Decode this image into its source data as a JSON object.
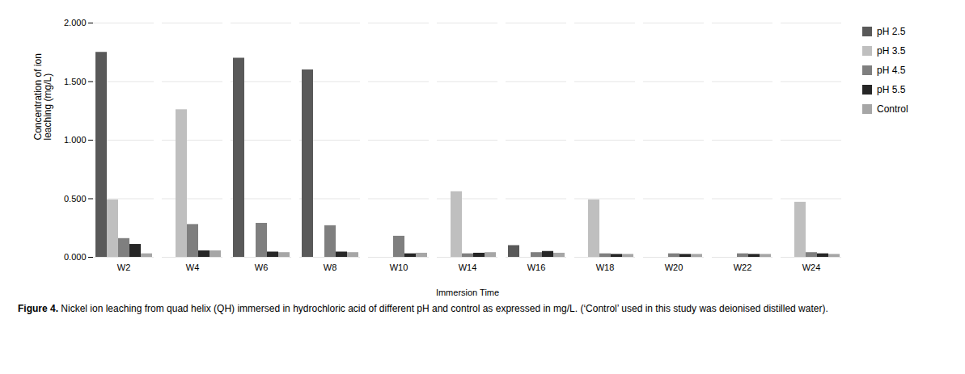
{
  "chart_data": {
    "type": "bar",
    "categories": [
      "W2",
      "W4",
      "W6",
      "W8",
      "W10",
      "W14",
      "W16",
      "W18",
      "W20",
      "W22",
      "W24"
    ],
    "series": [
      {
        "name": "pH 2.5",
        "color": "#595959",
        "values": [
          1.75,
          0.0,
          1.7,
          1.6,
          0.0,
          0.0,
          0.1,
          0.0,
          0.0,
          0.0,
          0.0
        ]
      },
      {
        "name": "pH 3.5",
        "color": "#bfbfbf",
        "values": [
          0.49,
          1.26,
          0.0,
          0.0,
          0.0,
          0.56,
          0.0,
          0.49,
          0.0,
          0.0,
          0.47
        ]
      },
      {
        "name": "pH 4.5",
        "color": "#7f7f7f",
        "values": [
          0.16,
          0.28,
          0.29,
          0.27,
          0.18,
          0.03,
          0.04,
          0.03,
          0.03,
          0.03,
          0.04
        ]
      },
      {
        "name": "pH 5.5",
        "color": "#262626",
        "values": [
          0.11,
          0.055,
          0.045,
          0.045,
          0.03,
          0.035,
          0.05,
          0.025,
          0.025,
          0.025,
          0.03
        ]
      },
      {
        "name": "Control",
        "color": "#a6a6a6",
        "values": [
          0.03,
          0.055,
          0.04,
          0.04,
          0.035,
          0.04,
          0.035,
          0.025,
          0.025,
          0.025,
          0.025
        ]
      }
    ],
    "ylabel": "Concentration of ion\nleaching (mg/L)",
    "xlabel": "Immersion Time",
    "ylim": [
      0,
      2
    ],
    "yticks": [
      {
        "value": 0,
        "label": "0.000"
      },
      {
        "value": 0.5,
        "label": "0.500"
      },
      {
        "value": 1,
        "label": "1.000"
      },
      {
        "value": 1.5,
        "label": "1.500"
      },
      {
        "value": 2,
        "label": "2.000"
      }
    ],
    "grid": true,
    "legend": "right",
    "caption": [
      "Figure 4.",
      "Nickel ion leaching from quad helix (QH) immersed in hydrochloric acid of different pH and control as expressed in mg/L. (‘Control’ used in this study was deionised distilled water)."
    ]
  }
}
